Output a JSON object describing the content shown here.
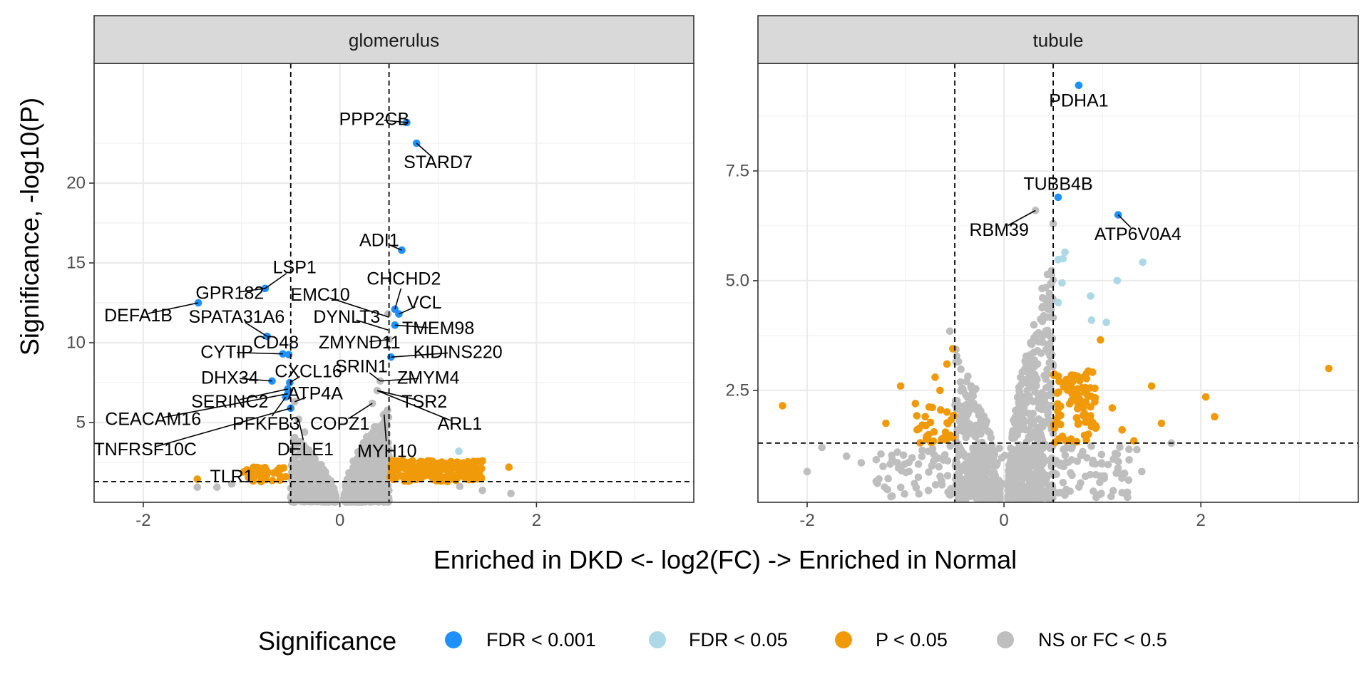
{
  "chart_data": {
    "type": "scatter",
    "xlabel": "Enriched in DKD <- log2(FC) -> Enriched in Normal",
    "ylabel": "Significance, -log10(P)",
    "legend": {
      "title": "Significance",
      "position": "bottom",
      "entries": [
        {
          "key": "fdr001",
          "label": "FDR < 0.001",
          "color": "#1E90FF"
        },
        {
          "key": "fdr05",
          "label": "FDR < 0.05",
          "color": "#ADD8E6"
        },
        {
          "key": "p05",
          "label": "P < 0.05",
          "color": "#F09A0A"
        },
        {
          "key": "ns",
          "label": "NS or FC < 0.5",
          "color": "#BEBEBE"
        }
      ]
    },
    "grid": true,
    "panels": [
      {
        "strip": "glomerulus",
        "xlim": [
          -2.5,
          3.6
        ],
        "ylim": [
          0,
          27.5
        ],
        "xticks": [
          -2,
          0,
          2
        ],
        "yticks": [
          5,
          10,
          15,
          20
        ],
        "fc_cutoffs": [
          -0.5,
          0.5
        ],
        "p_cutoff": 1.3,
        "points": [
          {
            "x": 0.68,
            "y": 23.8,
            "g": "fdr001"
          },
          {
            "x": 0.78,
            "y": 22.5,
            "g": "fdr001"
          },
          {
            "x": 0.63,
            "y": 15.8,
            "g": "fdr001"
          },
          {
            "x": -0.76,
            "y": 13.4,
            "g": "fdr001"
          },
          {
            "x": -1.44,
            "y": 12.5,
            "g": "fdr001"
          },
          {
            "x": 0.56,
            "y": 12.1,
            "g": "fdr001"
          },
          {
            "x": 0.6,
            "y": 11.8,
            "g": "fdr001"
          },
          {
            "x": 0.56,
            "y": 11.1,
            "g": "fdr001"
          },
          {
            "x": -0.74,
            "y": 10.4,
            "g": "fdr001"
          },
          {
            "x": -0.58,
            "y": 9.3,
            "g": "fdr001"
          },
          {
            "x": -0.52,
            "y": 9.25,
            "g": "fdr001"
          },
          {
            "x": 0.52,
            "y": 9.1,
            "g": "fdr001"
          },
          {
            "x": -0.69,
            "y": 7.6,
            "g": "fdr001"
          },
          {
            "x": -0.51,
            "y": 7.5,
            "g": "fdr001"
          },
          {
            "x": -0.53,
            "y": 7.1,
            "g": "fdr001"
          },
          {
            "x": -0.53,
            "y": 6.8,
            "g": "fdr001"
          },
          {
            "x": -0.55,
            "y": 6.6,
            "g": "fdr001"
          },
          {
            "x": -0.5,
            "y": 5.9,
            "g": "fdr001"
          },
          {
            "x": 1.21,
            "y": 3.2,
            "g": "fdr05"
          },
          {
            "x": 0.41,
            "y": 7.6,
            "g": "ns"
          },
          {
            "x": 0.38,
            "y": 7.0,
            "g": "ns"
          },
          {
            "x": 0.33,
            "y": 6.2,
            "g": "ns"
          },
          {
            "x": 0.45,
            "y": 5.5,
            "g": "ns"
          },
          {
            "x": 0.48,
            "y": 3.5,
            "g": "ns"
          },
          {
            "x": 0.49,
            "y": 11.8,
            "g": "ns"
          },
          {
            "x": 0.5,
            "y": 10.2,
            "g": "ns"
          },
          {
            "x": -0.46,
            "y": 6.3,
            "g": "ns"
          },
          {
            "x": -0.42,
            "y": 5.2,
            "g": "ns"
          },
          {
            "x": -0.36,
            "y": 4.4,
            "g": "ns"
          },
          {
            "x": -0.4,
            "y": 3.8,
            "g": "ns"
          },
          {
            "x": -0.48,
            "y": 2.6,
            "g": "ns"
          },
          {
            "x": -1.45,
            "y": 0.95,
            "g": "ns"
          },
          {
            "x": -1.25,
            "y": 0.95,
            "g": "ns"
          },
          {
            "x": -1.1,
            "y": 1.15,
            "g": "ns"
          },
          {
            "x": 1.22,
            "y": 1.0,
            "g": "ns"
          },
          {
            "x": 1.45,
            "y": 0.75,
            "g": "ns"
          },
          {
            "x": 1.74,
            "y": 0.55,
            "g": "ns"
          },
          {
            "x": -1.45,
            "y": 1.45,
            "g": "p05"
          },
          {
            "x": -0.98,
            "y": 1.9,
            "g": "p05"
          },
          {
            "x": -0.8,
            "y": 1.7,
            "g": "p05"
          },
          {
            "x": -0.65,
            "y": 1.85,
            "g": "p05"
          },
          {
            "x": -0.55,
            "y": 1.6,
            "g": "p05"
          },
          {
            "x": 1.72,
            "y": 2.2,
            "g": "p05"
          },
          {
            "x": 1.45,
            "y": 2.6,
            "g": "p05"
          },
          {
            "x": 1.2,
            "y": 2.5,
            "g": "p05"
          },
          {
            "x": 1.35,
            "y": 2.0,
            "g": "p05"
          }
        ],
        "clouds": [
          {
            "g": "ns",
            "side": "neg",
            "a": -0.5,
            "b": -0.04,
            "ymax": 4.2,
            "n": 420,
            "seed": 11
          },
          {
            "g": "ns",
            "side": "pos",
            "a": 0.04,
            "b": 0.5,
            "ymax": 5.8,
            "n": 520,
            "seed": 23
          },
          {
            "g": "p05",
            "side": "band",
            "a": -0.95,
            "b": -0.5,
            "ymin": 1.3,
            "ymax": 2.2,
            "n": 45,
            "seed": 37
          },
          {
            "g": "p05",
            "side": "band",
            "a": 0.5,
            "b": 1.45,
            "ymin": 1.3,
            "ymax": 2.6,
            "n": 200,
            "seed": 41
          }
        ],
        "labels": [
          {
            "text": "PPP2CB",
            "x": 0.35,
            "y": 24.0,
            "px": 0.68,
            "py": 23.8
          },
          {
            "text": "STARD7",
            "x": 1.0,
            "y": 21.3,
            "px": 0.78,
            "py": 22.5
          },
          {
            "text": "ADI1",
            "x": 0.4,
            "y": 16.4,
            "px": 0.63,
            "py": 15.8
          },
          {
            "text": "LSP1",
            "x": -0.46,
            "y": 14.7,
            "px": -0.76,
            "py": 13.4
          },
          {
            "text": "GPR182",
            "x": -1.12,
            "y": 13.1,
            "px": -0.76,
            "py": 13.4
          },
          {
            "text": "CHCHD2",
            "x": 0.65,
            "y": 14.0,
            "px": 0.56,
            "py": 12.1
          },
          {
            "text": "EMC10",
            "x": -0.2,
            "y": 13.0,
            "px": 0.5,
            "py": 11.6
          },
          {
            "text": "VCL",
            "x": 0.86,
            "y": 12.5,
            "px": 0.6,
            "py": 11.8
          },
          {
            "text": "DEFA1B",
            "x": -2.05,
            "y": 11.7,
            "px": -1.44,
            "py": 12.5
          },
          {
            "text": "SPATA31A6",
            "x": -1.05,
            "y": 11.6,
            "px": -0.74,
            "py": 10.4
          },
          {
            "text": "DYNLT3",
            "x": 0.07,
            "y": 11.6,
            "px": 0.49,
            "py": 10.8
          },
          {
            "text": "TMEM98",
            "x": 1.0,
            "y": 10.9,
            "px": 0.56,
            "py": 11.1
          },
          {
            "text": "CD48",
            "x": -0.65,
            "y": 10.0,
            "px": -0.58,
            "py": 9.3
          },
          {
            "text": "ZMYND11",
            "x": 0.2,
            "y": 10.0,
            "px": 0.5,
            "py": 10.2
          },
          {
            "text": "CYTIP",
            "x": -1.15,
            "y": 9.4,
            "px": -0.58,
            "py": 9.3
          },
          {
            "text": "KIDINS220",
            "x": 1.2,
            "y": 9.4,
            "px": 0.52,
            "py": 9.1
          },
          {
            "text": "SRIN1",
            "x": 0.22,
            "y": 8.5,
            "px": 0.41,
            "py": 7.6
          },
          {
            "text": "CXCL16",
            "x": -0.32,
            "y": 8.2,
            "px": -0.51,
            "py": 7.5
          },
          {
            "text": "ZMYM4",
            "x": 0.9,
            "y": 7.8,
            "px": 0.41,
            "py": 7.6
          },
          {
            "text": "DHX34",
            "x": -1.12,
            "y": 7.8,
            "px": -0.69,
            "py": 7.6
          },
          {
            "text": "ATP4A",
            "x": -0.25,
            "y": 6.8,
            "px": -0.46,
            "py": 6.3
          },
          {
            "text": "SERINC2",
            "x": -1.12,
            "y": 6.3,
            "px": -0.53,
            "py": 7.1
          },
          {
            "text": "TSR2",
            "x": 0.86,
            "y": 6.3,
            "px": 0.38,
            "py": 7.0
          },
          {
            "text": "CEACAM16",
            "x": -1.9,
            "y": 5.2,
            "px": -0.53,
            "py": 6.8
          },
          {
            "text": "PFKFB3",
            "x": -0.75,
            "y": 4.9,
            "px": -0.55,
            "py": 6.6
          },
          {
            "text": "COPZ1",
            "x": 0.0,
            "y": 4.9,
            "px": 0.33,
            "py": 6.2
          },
          {
            "text": "ARL1",
            "x": 1.22,
            "y": 4.9,
            "px": 0.38,
            "py": 7.0
          },
          {
            "text": "TNFRSF10C",
            "x": -1.98,
            "y": 3.3,
            "px": -0.5,
            "py": 5.9
          },
          {
            "text": "DELE1",
            "x": -0.35,
            "y": 3.3,
            "px": -0.42,
            "py": 5.2
          },
          {
            "text": "MYH10",
            "x": 0.48,
            "y": 3.2,
            "px": 0.45,
            "py": 5.5
          },
          {
            "text": "TLR1",
            "x": -1.1,
            "y": 1.6,
            "px": -0.95,
            "py": 1.8
          }
        ]
      },
      {
        "strip": "tubule",
        "xlim": [
          -2.5,
          3.6
        ],
        "ylim": [
          -0.05,
          9.95
        ],
        "xticks": [
          -2,
          0,
          2
        ],
        "yticks": [
          2.5,
          5.0,
          7.5
        ],
        "ytick_labels": [
          "2.5",
          "5.0",
          "7.5"
        ],
        "fc_cutoffs": [
          -0.5,
          0.5
        ],
        "p_cutoff": 1.3,
        "points": [
          {
            "x": 0.76,
            "y": 9.45,
            "g": "fdr001"
          },
          {
            "x": 0.55,
            "y": 6.9,
            "g": "fdr001"
          },
          {
            "x": 1.16,
            "y": 6.5,
            "g": "fdr001"
          },
          {
            "x": 0.32,
            "y": 6.6,
            "g": "ns"
          },
          {
            "x": 0.5,
            "y": 6.3,
            "g": "ns"
          },
          {
            "x": 0.62,
            "y": 5.65,
            "g": "fdr05"
          },
          {
            "x": 0.6,
            "y": 5.5,
            "g": "fdr05"
          },
          {
            "x": 0.55,
            "y": 5.48,
            "g": "fdr05"
          },
          {
            "x": 1.41,
            "y": 5.42,
            "g": "fdr05"
          },
          {
            "x": 0.59,
            "y": 4.95,
            "g": "fdr05"
          },
          {
            "x": 1.15,
            "y": 5.0,
            "g": "fdr05"
          },
          {
            "x": 0.55,
            "y": 4.5,
            "g": "fdr05"
          },
          {
            "x": 0.88,
            "y": 4.65,
            "g": "fdr05"
          },
          {
            "x": 0.89,
            "y": 4.1,
            "g": "fdr05"
          },
          {
            "x": 1.04,
            "y": 4.05,
            "g": "fdr05"
          },
          {
            "x": 0.98,
            "y": 3.65,
            "g": "p05"
          },
          {
            "x": 3.3,
            "y": 3.0,
            "g": "p05"
          },
          {
            "x": 2.05,
            "y": 2.35,
            "g": "p05"
          },
          {
            "x": 2.14,
            "y": 1.9,
            "g": "p05"
          },
          {
            "x": 1.5,
            "y": 2.6,
            "g": "p05"
          },
          {
            "x": 1.6,
            "y": 1.75,
            "g": "p05"
          },
          {
            "x": 1.32,
            "y": 1.35,
            "g": "p05"
          },
          {
            "x": 1.2,
            "y": 1.6,
            "g": "p05"
          },
          {
            "x": 1.1,
            "y": 2.1,
            "g": "p05"
          },
          {
            "x": -2.25,
            "y": 2.15,
            "g": "p05"
          },
          {
            "x": -1.2,
            "y": 1.75,
            "g": "p05"
          },
          {
            "x": -1.05,
            "y": 2.6,
            "g": "p05"
          },
          {
            "x": -0.9,
            "y": 2.2,
            "g": "p05"
          },
          {
            "x": -0.7,
            "y": 2.8,
            "g": "p05"
          },
          {
            "x": -0.65,
            "y": 2.5,
            "g": "p05"
          },
          {
            "x": -0.58,
            "y": 3.1,
            "g": "p05"
          },
          {
            "x": -0.52,
            "y": 3.45,
            "g": "p05"
          },
          {
            "x": -0.8,
            "y": 1.9,
            "g": "p05"
          },
          {
            "x": -0.55,
            "y": 3.85,
            "g": "ns"
          },
          {
            "x": -2.0,
            "y": 0.65,
            "g": "ns"
          },
          {
            "x": -1.85,
            "y": 1.2,
            "g": "ns"
          },
          {
            "x": -1.6,
            "y": 1.0,
            "g": "ns"
          },
          {
            "x": -1.45,
            "y": 0.85,
            "g": "ns"
          },
          {
            "x": -1.25,
            "y": 1.05,
            "g": "ns"
          },
          {
            "x": 1.7,
            "y": 1.3,
            "g": "ns"
          },
          {
            "x": 1.4,
            "y": 0.65,
            "g": "ns"
          },
          {
            "x": 1.35,
            "y": 1.15,
            "g": "ns"
          }
        ],
        "clouds": [
          {
            "g": "ns",
            "side": "neg",
            "a": -0.5,
            "b": -0.04,
            "ymax": 3.4,
            "n": 380,
            "seed": 53
          },
          {
            "g": "ns",
            "side": "pos",
            "a": 0.04,
            "b": 0.5,
            "ymax": 5.5,
            "n": 480,
            "seed": 67
          },
          {
            "g": "ns",
            "side": "band",
            "a": -1.3,
            "b": 1.3,
            "ymin": 0.05,
            "ymax": 1.25,
            "n": 220,
            "seed": 71
          },
          {
            "g": "p05",
            "side": "band",
            "a": -0.9,
            "b": -0.5,
            "ymin": 1.3,
            "ymax": 2.2,
            "n": 30,
            "seed": 79
          },
          {
            "g": "p05",
            "side": "band",
            "a": 0.5,
            "b": 0.95,
            "ymin": 1.3,
            "ymax": 3.0,
            "n": 90,
            "seed": 83
          }
        ],
        "labels": [
          {
            "text": "PDHA1",
            "x": 0.76,
            "y": 9.1,
            "px": 0.76,
            "py": 9.45
          },
          {
            "text": "TUBB4B",
            "x": 0.55,
            "y": 7.2,
            "px": 0.55,
            "py": 6.9
          },
          {
            "text": "RBM39",
            "x": -0.05,
            "y": 6.15,
            "px": 0.32,
            "py": 6.6
          },
          {
            "text": "ATP6V0A4",
            "x": 1.36,
            "y": 6.05,
            "px": 1.16,
            "py": 6.5
          }
        ]
      }
    ]
  }
}
